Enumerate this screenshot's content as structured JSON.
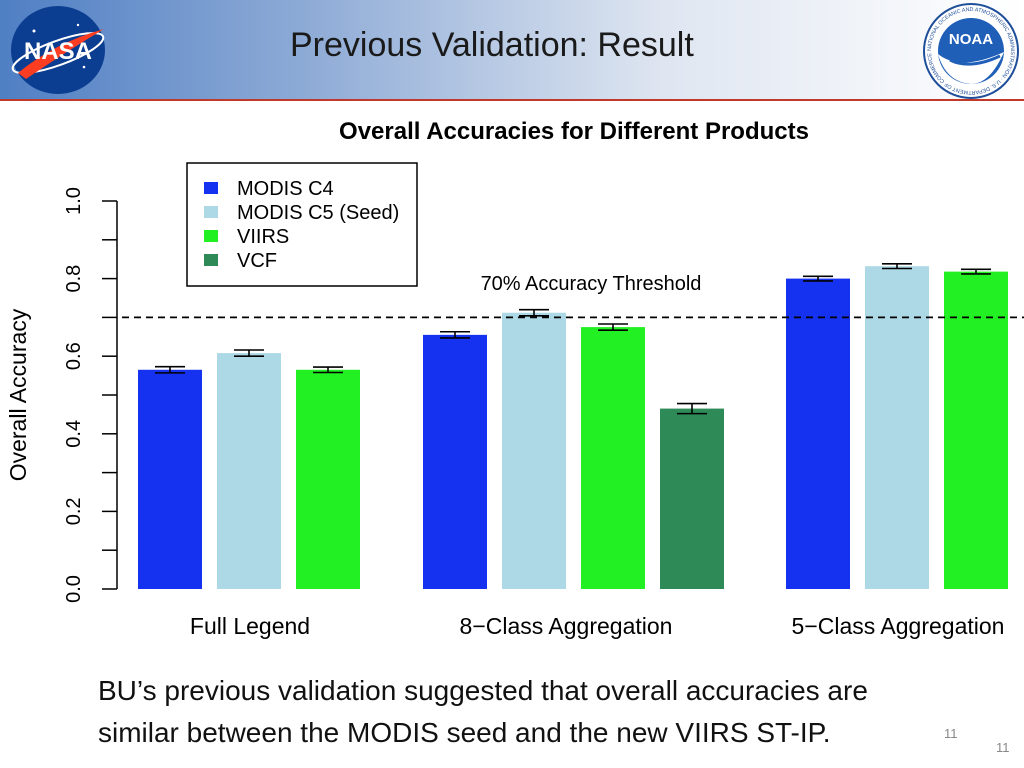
{
  "slide": {
    "title": "Previous Validation: Result",
    "body_lines": [
      "BU’s previous validation suggested that overall accuracies are",
      "similar between the MODIS seed and the new VIIRS ST-IP."
    ],
    "page_number_a": "11",
    "page_number_b": "11"
  },
  "logos": {
    "nasa": {
      "text": "NASA"
    },
    "noaa": {
      "text": "NOAA",
      "ring_text": "NATIONAL OCEANIC AND ATMOSPHERIC ADMINISTRATION · U.S. DEPARTMENT OF COMMERCE"
    }
  },
  "colors": {
    "modis_c4": "#1432f0",
    "modis_c5": "#add8e6",
    "viirs": "#22f022",
    "vcf": "#2e8b57",
    "header_accent": "#c0392b"
  },
  "chart_data": {
    "type": "bar",
    "title": "Overall Accuracies for Different Products",
    "ylabel": "Overall Accuracy",
    "xlabel": "",
    "ylim": [
      0,
      1.0
    ],
    "yticks": [
      "0.0",
      "0.2",
      "0.4",
      "0.6",
      "0.8",
      "1.0"
    ],
    "grid": false,
    "legend_position": "top-left",
    "categories": [
      "Full Legend",
      "8−Class Aggregation",
      "5−Class Aggregation"
    ],
    "series": [
      {
        "name": "MODIS C4",
        "color": "#1432f0",
        "values": [
          0.565,
          0.655,
          0.8
        ],
        "errors": [
          0.008,
          0.008,
          0.006
        ]
      },
      {
        "name": "MODIS C5 (Seed)",
        "color": "#add8e6",
        "values": [
          0.608,
          0.712,
          0.832
        ],
        "errors": [
          0.008,
          0.008,
          0.006
        ]
      },
      {
        "name": "VIIRS",
        "color": "#22f022",
        "values": [
          0.565,
          0.675,
          0.818
        ],
        "errors": [
          0.007,
          0.008,
          0.006
        ]
      },
      {
        "name": "VCF",
        "color": "#2e8b57",
        "values": [
          null,
          0.465,
          null
        ],
        "errors": [
          null,
          0.013,
          null
        ]
      }
    ],
    "threshold": {
      "value": 0.7,
      "label": "70% Accuracy Threshold"
    }
  }
}
